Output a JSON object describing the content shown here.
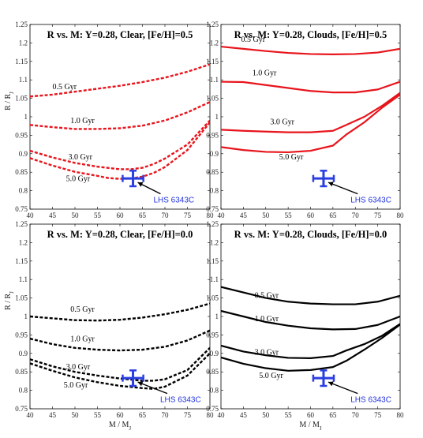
{
  "chart_data": [
    {
      "type": "line",
      "title": "R vs. M: Y=0.28, Clear, [Fe/H]=0.5",
      "xlabel": "",
      "ylabel": "R / R_J",
      "xlim": [
        40,
        80
      ],
      "ylim": [
        0.75,
        1.25
      ],
      "xticks": [
        40,
        45,
        50,
        55,
        60,
        65,
        70,
        75,
        80
      ],
      "yticks": [
        0.75,
        0.8,
        0.85,
        0.9,
        0.95,
        1,
        1.05,
        1.1,
        1.15,
        1.2,
        1.25
      ],
      "color": "#e8141c",
      "line_style": "dashed",
      "series": [
        {
          "name": "0.5 Gyr",
          "label_at": [
            45,
            1.075
          ],
          "x": [
            40,
            45,
            50,
            55,
            60,
            65,
            70,
            75,
            80
          ],
          "y": [
            1.055,
            1.06,
            1.068,
            1.076,
            1.084,
            1.094,
            1.106,
            1.122,
            1.142
          ]
        },
        {
          "name": "1.0 Gyr",
          "label_at": [
            49,
            0.983
          ],
          "x": [
            40,
            45,
            50,
            55,
            60,
            65,
            70,
            75,
            80
          ],
          "y": [
            0.978,
            0.972,
            0.967,
            0.967,
            0.969,
            0.976,
            0.99,
            1.012,
            1.04
          ]
        },
        {
          "name": "3.0 Gyr",
          "label_at": [
            48.5,
            0.885
          ],
          "x": [
            40,
            45,
            50,
            55,
            60,
            62.5,
            65,
            67.5,
            70,
            75,
            80
          ],
          "y": [
            0.908,
            0.89,
            0.875,
            0.865,
            0.858,
            0.858,
            0.862,
            0.872,
            0.887,
            0.925,
            0.99
          ]
        },
        {
          "name": "5.0 Gyr",
          "label_at": [
            48,
            0.826
          ],
          "x": [
            40,
            45,
            50,
            55,
            57.5,
            60,
            62.5,
            65,
            67.5,
            70,
            75,
            80
          ],
          "y": [
            0.888,
            0.868,
            0.851,
            0.84,
            0.834,
            0.832,
            0.833,
            0.838,
            0.848,
            0.864,
            0.91,
            0.985
          ]
        }
      ],
      "object": {
        "label": "LHS 6343C",
        "x": 62.9,
        "y": 0.833,
        "xerr": 2.3,
        "yerr": 0.021,
        "color": "#2a3fe0",
        "label_at": [
          68.5,
          0.777
        ],
        "arrow_from": [
          68.5,
          0.785
        ]
      }
    },
    {
      "type": "line",
      "title": "R vs. M: Y=0.28, Clouds, [Fe/H]=0.5",
      "xlabel": "",
      "ylabel": "",
      "xlim": [
        40,
        80
      ],
      "ylim": [
        0.75,
        1.25
      ],
      "xticks": [
        40,
        45,
        50,
        55,
        60,
        65,
        70,
        75,
        80
      ],
      "yticks": [
        0.75,
        0.8,
        0.85,
        0.9,
        0.95,
        1,
        1.05,
        1.1,
        1.15,
        1.2,
        1.25
      ],
      "color": "#e8141c",
      "line_style": "solid",
      "series": [
        {
          "name": "0.5 Gyr",
          "label_at": [
            44.5,
            1.203
          ],
          "x": [
            40,
            45,
            50,
            55,
            60,
            65,
            70,
            75,
            80
          ],
          "y": [
            1.19,
            1.184,
            1.178,
            1.173,
            1.17,
            1.169,
            1.17,
            1.174,
            1.184
          ]
        },
        {
          "name": "1.0 Gyr",
          "label_at": [
            47,
            1.112
          ],
          "x": [
            40,
            45,
            50,
            55,
            60,
            65,
            70,
            75,
            80
          ],
          "y": [
            1.095,
            1.094,
            1.086,
            1.078,
            1.07,
            1.066,
            1.066,
            1.074,
            1.095
          ]
        },
        {
          "name": "3.0 Gyr",
          "label_at": [
            51,
            0.98
          ],
          "x": [
            40,
            45,
            50,
            55,
            60,
            65,
            68,
            72,
            76,
            80
          ],
          "y": [
            0.965,
            0.962,
            0.96,
            0.958,
            0.958,
            0.962,
            0.978,
            1.0,
            1.03,
            1.065
          ]
        },
        {
          "name": "5.0 Gyr",
          "label_at": [
            53,
            0.885
          ],
          "x": [
            40,
            45,
            50,
            55,
            60,
            65,
            68,
            72,
            76,
            80
          ],
          "y": [
            0.918,
            0.91,
            0.905,
            0.904,
            0.908,
            0.922,
            0.952,
            0.985,
            1.025,
            1.06
          ]
        }
      ],
      "object": {
        "label": "LHS 6343C",
        "x": 62.9,
        "y": 0.833,
        "xerr": 2.3,
        "yerr": 0.021,
        "color": "#2a3fe0",
        "label_at": [
          70,
          0.777
        ],
        "arrow_from": [
          70,
          0.785
        ]
      }
    },
    {
      "type": "line",
      "title": "R vs. M: Y=0.28, Clear, [Fe/H]=0.0",
      "xlabel": "M / M_J",
      "ylabel": "R / R_J",
      "xlim": [
        40,
        80
      ],
      "ylim": [
        0.75,
        1.25
      ],
      "xticks": [
        40,
        45,
        50,
        55,
        60,
        65,
        70,
        75,
        80
      ],
      "yticks": [
        0.75,
        0.8,
        0.85,
        0.9,
        0.95,
        1,
        1.05,
        1.1,
        1.15,
        1.2,
        1.25
      ],
      "color": "#000000",
      "line_style": "dashed",
      "series": [
        {
          "name": "0.5 Gyr",
          "label_at": [
            49,
            1.013
          ],
          "x": [
            40,
            45,
            50,
            55,
            60,
            65,
            70,
            75,
            80
          ],
          "y": [
            1.0,
            0.995,
            0.99,
            0.989,
            0.991,
            0.997,
            1.006,
            1.018,
            1.035
          ]
        },
        {
          "name": "1.0 Gyr",
          "label_at": [
            49,
            0.933
          ],
          "x": [
            40,
            45,
            50,
            55,
            60,
            65,
            70,
            75,
            80
          ],
          "y": [
            0.94,
            0.925,
            0.915,
            0.91,
            0.908,
            0.91,
            0.918,
            0.935,
            0.962
          ]
        },
        {
          "name": "3.0 Gyr",
          "label_at": [
            48,
            0.857
          ],
          "x": [
            40,
            45,
            50,
            55,
            60,
            65,
            67.5,
            70,
            75,
            80
          ],
          "y": [
            0.884,
            0.865,
            0.85,
            0.84,
            0.832,
            0.826,
            0.826,
            0.83,
            0.855,
            0.915
          ]
        },
        {
          "name": "5.0 Gyr",
          "label_at": [
            47.5,
            0.808
          ],
          "x": [
            40,
            45,
            50,
            55,
            60,
            65,
            67.5,
            70,
            75,
            80
          ],
          "y": [
            0.873,
            0.853,
            0.835,
            0.822,
            0.812,
            0.806,
            0.804,
            0.81,
            0.84,
            0.9
          ]
        }
      ],
      "object": {
        "label": "LHS 6343C",
        "x": 62.9,
        "y": 0.833,
        "xerr": 2.3,
        "yerr": 0.021,
        "color": "#2a3fe0",
        "label_at": [
          70,
          0.777
        ],
        "arrow_from": [
          70,
          0.785
        ]
      }
    },
    {
      "type": "line",
      "title": "R vs. M: Y=0.28, Clouds, [Fe/H]=0.0",
      "xlabel": "M / M_J",
      "ylabel": "",
      "xlim": [
        40,
        80
      ],
      "ylim": [
        0.75,
        1.25
      ],
      "xticks": [
        40,
        45,
        50,
        55,
        60,
        65,
        70,
        75,
        80
      ],
      "yticks": [
        0.75,
        0.8,
        0.85,
        0.9,
        0.95,
        1,
        1.05,
        1.1,
        1.15,
        1.2,
        1.25
      ],
      "color": "#000000",
      "line_style": "solid",
      "series": [
        {
          "name": "0.5 Gyr",
          "label_at": [
            47.5,
            1.05
          ],
          "x": [
            40,
            45,
            50,
            55,
            60,
            65,
            70,
            75,
            80
          ],
          "y": [
            1.08,
            1.065,
            1.05,
            1.04,
            1.035,
            1.033,
            1.033,
            1.04,
            1.056
          ]
        },
        {
          "name": "1.0 Gyr",
          "label_at": [
            47.5,
            0.987
          ],
          "x": [
            40,
            45,
            50,
            55,
            60,
            65,
            70,
            75,
            80
          ],
          "y": [
            1.015,
            1.0,
            0.985,
            0.975,
            0.968,
            0.965,
            0.966,
            0.977,
            1.0
          ]
        },
        {
          "name": "3.0 Gyr",
          "label_at": [
            47.5,
            0.896
          ],
          "x": [
            40,
            45,
            50,
            55,
            60,
            65,
            68,
            72,
            76,
            80
          ],
          "y": [
            0.921,
            0.905,
            0.895,
            0.888,
            0.887,
            0.893,
            0.908,
            0.925,
            0.948,
            0.98
          ]
        },
        {
          "name": "5.0 Gyr",
          "label_at": [
            48.5,
            0.833
          ],
          "x": [
            40,
            45,
            50,
            55,
            60,
            65,
            68,
            72,
            76,
            80
          ],
          "y": [
            0.889,
            0.872,
            0.86,
            0.853,
            0.855,
            0.863,
            0.88,
            0.91,
            0.942,
            0.978
          ]
        }
      ],
      "object": {
        "label": "LHS 6343C",
        "x": 62.9,
        "y": 0.833,
        "xerr": 2.3,
        "yerr": 0.021,
        "color": "#2a3fe0",
        "label_at": [
          70,
          0.777
        ],
        "arrow_from": [
          70,
          0.785
        ]
      }
    }
  ]
}
